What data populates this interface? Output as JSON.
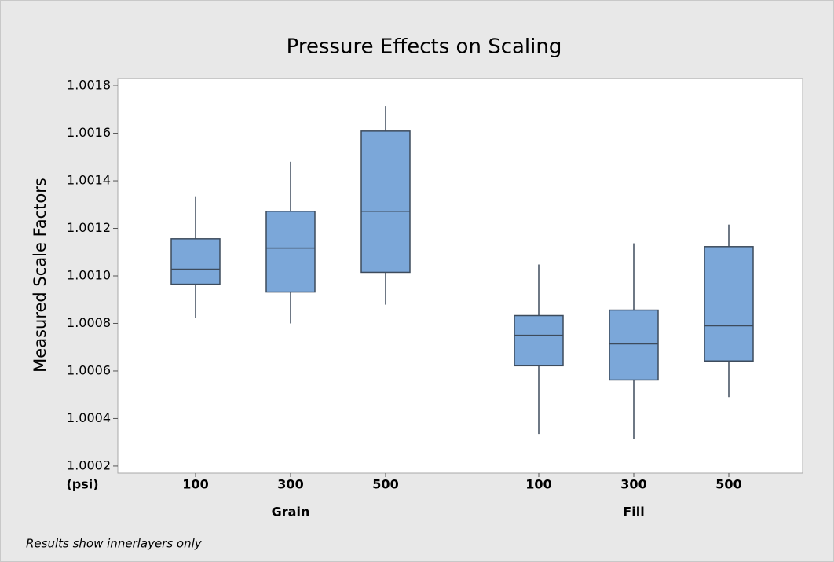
{
  "chart_data": {
    "type": "boxplot",
    "title": "Pressure Effects on Scaling",
    "y_label": "Measured Scale Factors",
    "x_label": "(psi)",
    "footnote": "Results show innerlayers only",
    "color": "#7ba7d9",
    "edge_color": "#3d4b5c",
    "ylim": [
      1.00017,
      1.00183
    ],
    "yticks": [
      1.0002,
      1.0004,
      1.0006,
      1.0008,
      {
        "value": 1.001,
        "label": "1.0010"
      },
      1.0012,
      1.0014,
      1.0016,
      1.0018
    ],
    "groups": [
      {
        "name": "Grain",
        "boxes": [
          {
            "category": "100",
            "low": 1.000823,
            "q1": 1.000965,
            "median": 1.001028,
            "q3": 1.001156,
            "high": 1.001335
          },
          {
            "category": "300",
            "low": 1.0008,
            "q1": 1.000932,
            "median": 1.001117,
            "q3": 1.001272,
            "high": 1.00148
          },
          {
            "category": "500",
            "low": 1.000879,
            "q1": 1.001015,
            "median": 1.001272,
            "q3": 1.001609,
            "high": 1.001714
          }
        ]
      },
      {
        "name": "Fill",
        "boxes": [
          {
            "category": "100",
            "low": 1.000335,
            "q1": 1.000622,
            "median": 1.00075,
            "q3": 1.000833,
            "high": 1.001048
          },
          {
            "category": "300",
            "low": 1.000315,
            "q1": 1.000562,
            "median": 1.000714,
            "q3": 1.000856,
            "high": 1.001137
          },
          {
            "category": "500",
            "low": 1.00049,
            "q1": 1.000642,
            "median": 1.00079,
            "q3": 1.001123,
            "high": 1.001216
          }
        ]
      }
    ]
  }
}
